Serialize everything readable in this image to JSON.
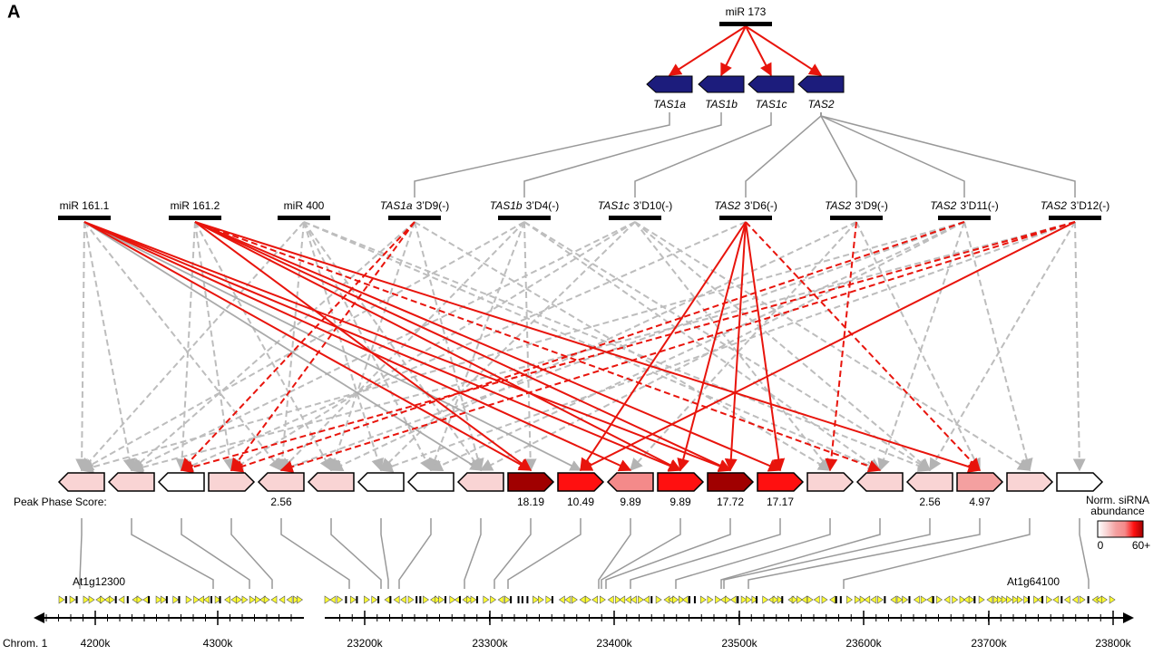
{
  "panel_label": "A",
  "top_node": {
    "label": "miR 173"
  },
  "tas_genes": [
    {
      "label": "TAS1a"
    },
    {
      "label": "TAS1b"
    },
    {
      "label": "TAS1c"
    },
    {
      "label": "TAS2"
    }
  ],
  "mid_nodes": [
    {
      "label": "miR 161.1"
    },
    {
      "label": "miR 161.2"
    },
    {
      "label": "miR 400"
    },
    {
      "gene": "TAS1a",
      "sirna": "3’D9(-)"
    },
    {
      "gene": "TAS1b",
      "sirna": "3’D4(-)"
    },
    {
      "gene": "TAS1c",
      "sirna": "3’D10(-)"
    },
    {
      "gene": "TAS2",
      "sirna": "3’D6(-)"
    },
    {
      "gene": "TAS2",
      "sirna": "3’D9(-)"
    },
    {
      "gene": "TAS2",
      "sirna": "3’D11(-)"
    },
    {
      "gene": "TAS2",
      "sirna": "3’D12(-)"
    }
  ],
  "targets": [
    {
      "direction": "left",
      "fill": "#f9d4d4"
    },
    {
      "direction": "left",
      "fill": "#f9d4d4"
    },
    {
      "direction": "left",
      "fill": "#ffffff"
    },
    {
      "direction": "right",
      "fill": "#f9d4d4"
    },
    {
      "direction": "left",
      "fill": "#f9d4d4",
      "score": "2.56"
    },
    {
      "direction": "left",
      "fill": "#f9d4d4"
    },
    {
      "direction": "left",
      "fill": "#ffffff"
    },
    {
      "direction": "left",
      "fill": "#ffffff"
    },
    {
      "direction": "left",
      "fill": "#f9d4d4"
    },
    {
      "direction": "right",
      "fill": "#a00000",
      "score": "18.19"
    },
    {
      "direction": "right",
      "fill": "#ff1010",
      "score": "10.49"
    },
    {
      "direction": "left",
      "fill": "#f48a8a",
      "score": "9.89"
    },
    {
      "direction": "right",
      "fill": "#ff1010",
      "score": "9.89"
    },
    {
      "direction": "right",
      "fill": "#a00000",
      "score": "17.72"
    },
    {
      "direction": "right",
      "fill": "#ff1010",
      "score": "17.17"
    },
    {
      "direction": "right",
      "fill": "#f9d4d4"
    },
    {
      "direction": "left",
      "fill": "#f9d4d4"
    },
    {
      "direction": "left",
      "fill": "#f9d4d4",
      "score": "2.56"
    },
    {
      "direction": "right",
      "fill": "#f4a0a0",
      "score": "4.97"
    },
    {
      "direction": "right",
      "fill": "#f9d4d4"
    },
    {
      "direction": "right",
      "fill": "#ffffff"
    }
  ],
  "score_label": "Peak Phase Score:",
  "legend": {
    "title_lines": [
      "Norm. siRNA",
      "abundance"
    ],
    "min": "0",
    "max": "60+",
    "colors": [
      "#ffffff",
      "#f9d4d4",
      "#f4a0a0",
      "#f48a8a",
      "#ff1010",
      "#a00000"
    ]
  },
  "loci": [
    "At1g12300",
    "At1g64100"
  ],
  "chromosome": {
    "label": "Chrom. 1",
    "segments": [
      {
        "ticks": [
          "4200k",
          "4300k"
        ]
      },
      {
        "ticks": [
          "23200k",
          "23300k",
          "23400k",
          "23500k",
          "23600k",
          "23700k",
          "23800k"
        ]
      }
    ]
  },
  "edges_tas": [
    [
      0,
      3
    ],
    [
      1,
      4
    ],
    [
      2,
      5
    ],
    [
      3,
      6
    ],
    [
      3,
      7
    ],
    [
      3,
      8
    ],
    [
      3,
      9
    ]
  ],
  "edges_targets": [
    [
      0,
      9,
      "red"
    ],
    [
      0,
      11,
      "red"
    ],
    [
      0,
      12,
      "red"
    ],
    [
      0,
      13,
      "red"
    ],
    [
      0,
      8,
      "gray"
    ],
    [
      0,
      10,
      "gray"
    ],
    [
      0,
      0,
      "gray-dash"
    ],
    [
      0,
      1,
      "gray-dash"
    ],
    [
      0,
      4,
      "gray-dash"
    ],
    [
      1,
      9,
      "red"
    ],
    [
      1,
      12,
      "red"
    ],
    [
      1,
      13,
      "red"
    ],
    [
      1,
      14,
      "red"
    ],
    [
      1,
      18,
      "red"
    ],
    [
      1,
      2,
      "gray-dash"
    ],
    [
      1,
      3,
      "gray-dash"
    ],
    [
      1,
      5,
      "gray-dash"
    ],
    [
      1,
      16,
      "red-dash"
    ],
    [
      2,
      0,
      "gray-dash"
    ],
    [
      2,
      4,
      "gray-dash"
    ],
    [
      2,
      6,
      "gray-dash"
    ],
    [
      2,
      7,
      "gray-dash"
    ],
    [
      2,
      8,
      "gray-dash"
    ],
    [
      2,
      16,
      "gray-dash"
    ],
    [
      2,
      17,
      "gray-dash"
    ],
    [
      3,
      2,
      "red-dash"
    ],
    [
      3,
      3,
      "red-dash"
    ],
    [
      3,
      1,
      "gray-dash"
    ],
    [
      3,
      5,
      "gray-dash"
    ],
    [
      3,
      8,
      "gray-dash"
    ],
    [
      3,
      15,
      "gray-dash"
    ],
    [
      4,
      0,
      "gray-dash"
    ],
    [
      4,
      4,
      "gray-dash"
    ],
    [
      4,
      7,
      "gray-dash"
    ],
    [
      4,
      9,
      "gray-dash"
    ],
    [
      4,
      16,
      "gray-dash"
    ],
    [
      4,
      17,
      "gray-dash"
    ],
    [
      5,
      1,
      "gray-dash"
    ],
    [
      5,
      3,
      "gray-dash"
    ],
    [
      5,
      6,
      "gray-dash"
    ],
    [
      5,
      15,
      "gray-dash"
    ],
    [
      5,
      17,
      "gray-dash"
    ],
    [
      5,
      19,
      "gray-dash"
    ],
    [
      6,
      10,
      "red"
    ],
    [
      6,
      12,
      "red"
    ],
    [
      6,
      13,
      "red"
    ],
    [
      6,
      14,
      "red"
    ],
    [
      6,
      18,
      "red-dash"
    ],
    [
      6,
      2,
      "gray-dash"
    ],
    [
      7,
      15,
      "red-dash"
    ],
    [
      7,
      5,
      "gray-dash"
    ],
    [
      7,
      11,
      "gray-dash"
    ],
    [
      7,
      18,
      "gray-dash"
    ],
    [
      8,
      3,
      "red-dash"
    ],
    [
      8,
      0,
      "gray-dash"
    ],
    [
      8,
      4,
      "gray-dash"
    ],
    [
      8,
      7,
      "gray-dash"
    ],
    [
      8,
      8,
      "gray-dash"
    ],
    [
      8,
      16,
      "gray-dash"
    ],
    [
      8,
      19,
      "gray-dash"
    ],
    [
      9,
      2,
      "red-dash"
    ],
    [
      9,
      4,
      "red-dash"
    ],
    [
      9,
      10,
      "red"
    ],
    [
      9,
      1,
      "gray-dash"
    ],
    [
      9,
      6,
      "gray-dash"
    ],
    [
      9,
      17,
      "gray-dash"
    ],
    [
      9,
      20,
      "gray-dash"
    ]
  ]
}
